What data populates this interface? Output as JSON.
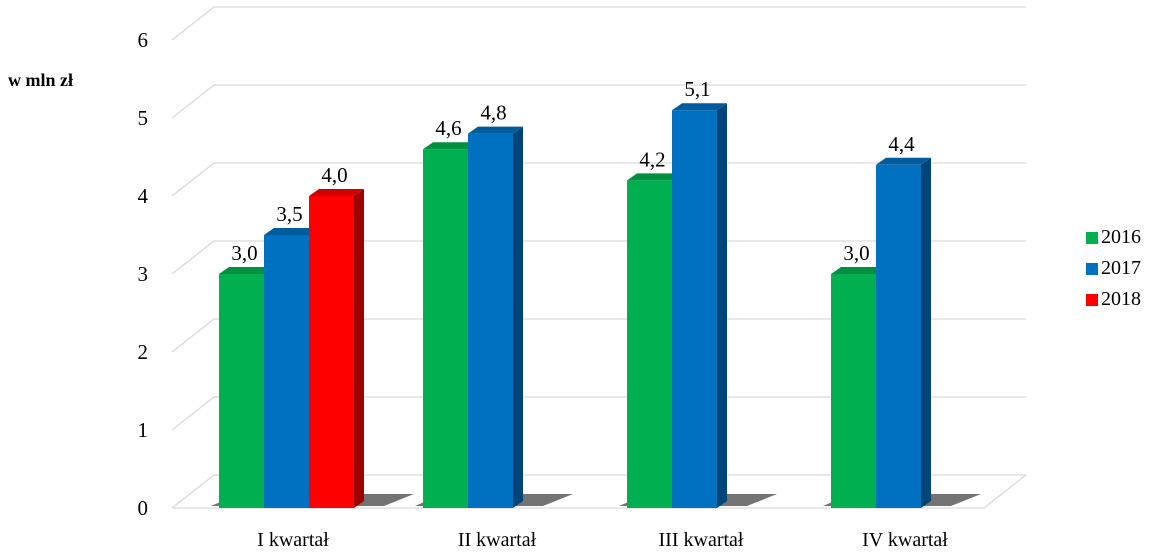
{
  "chart_data": {
    "type": "bar",
    "ylabel": "w mln zł",
    "xlabel": "",
    "ylim": [
      0,
      6
    ],
    "yticks": [
      "0",
      "1",
      "2",
      "3",
      "4",
      "5",
      "6"
    ],
    "grid": true,
    "legend_position": "right",
    "categories": [
      "I kwartał",
      "II kwartał",
      "III kwartał",
      "IV kwartał"
    ],
    "series": [
      {
        "name": "2016",
        "color": "#00b050",
        "values": [
          3.0,
          4.6,
          4.2,
          3.0
        ],
        "labels": [
          "3,0",
          "4,6",
          "4,2",
          "3,0"
        ]
      },
      {
        "name": "2017",
        "color": "#0070c0",
        "values": [
          3.5,
          4.8,
          5.1,
          4.4
        ],
        "labels": [
          "3,5",
          "4,8",
          "5,1",
          "4,4"
        ]
      },
      {
        "name": "2018",
        "color": "#ff0000",
        "values": [
          4.0,
          null,
          null,
          null
        ],
        "labels": [
          "4,0",
          null,
          null,
          null
        ]
      }
    ]
  }
}
